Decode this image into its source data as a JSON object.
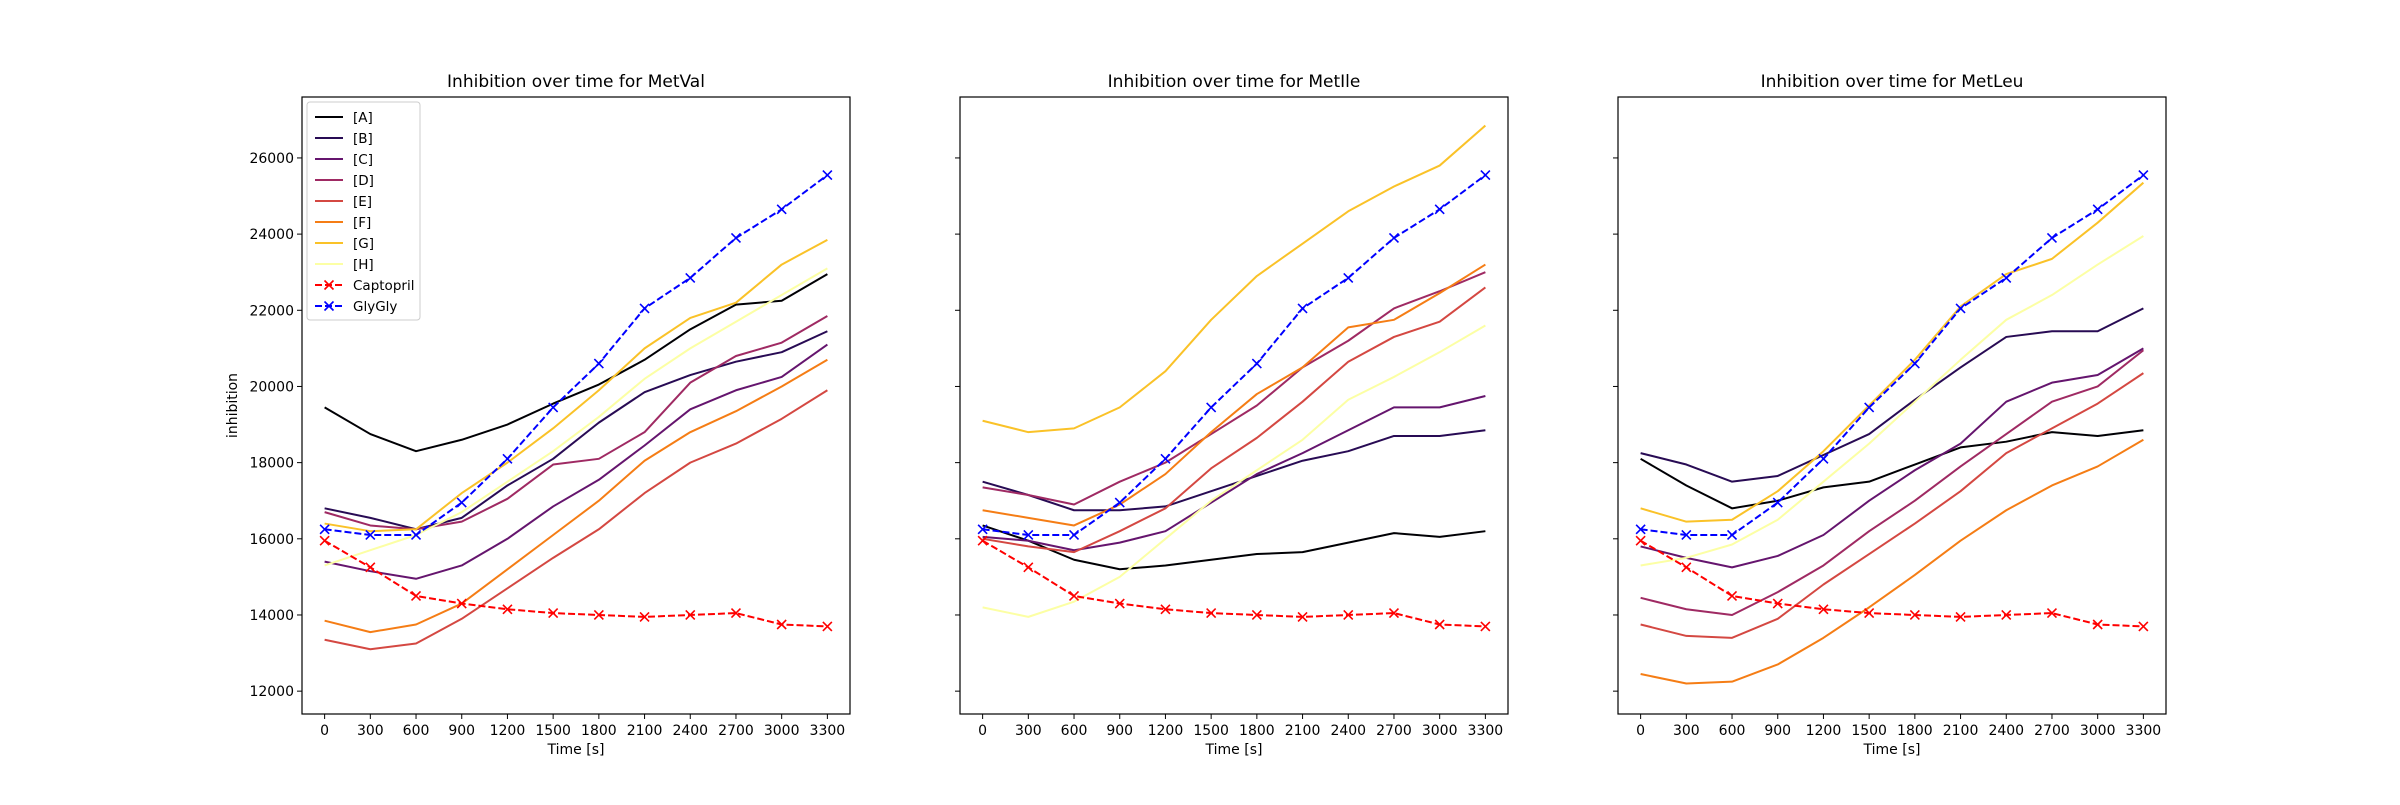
{
  "chart_data": [
    {
      "type": "line",
      "title": "Inhibition over time for MetVal",
      "xlabel": "Time [s]",
      "ylabel": "inhibition",
      "x": [
        0,
        300,
        600,
        900,
        1200,
        1500,
        1800,
        2100,
        2400,
        2700,
        3000,
        3300
      ],
      "xticks": [
        "0",
        "300",
        "600",
        "900",
        "1200",
        "1500",
        "1800",
        "2100",
        "2400",
        "2700",
        "3000",
        "3300"
      ],
      "yticks": [
        "12000",
        "14000",
        "16000",
        "18000",
        "20000",
        "22000",
        "24000",
        "26000"
      ],
      "ylim": [
        11400,
        27600
      ],
      "legend": "upper-left",
      "series": [
        {
          "name": "[A]",
          "color": "#000004",
          "style": "solid",
          "values": [
            19450,
            18750,
            18300,
            18600,
            19000,
            19550,
            20050,
            20700,
            21500,
            22150,
            22250,
            22950
          ]
        },
        {
          "name": "[B]",
          "color": "#280b54",
          "style": "solid",
          "values": [
            16800,
            16550,
            16250,
            16550,
            17400,
            18100,
            19050,
            19850,
            20300,
            20650,
            20900,
            21450
          ]
        },
        {
          "name": "[C]",
          "color": "#65156e",
          "style": "solid",
          "values": [
            15400,
            15150,
            14950,
            15300,
            16000,
            16850,
            17550,
            18450,
            19400,
            19900,
            20250,
            21100
          ]
        },
        {
          "name": "[D]",
          "color": "#9f2a63",
          "style": "solid",
          "values": [
            16700,
            16350,
            16250,
            16450,
            17050,
            17950,
            18100,
            18800,
            20100,
            20800,
            21150,
            21850
          ]
        },
        {
          "name": "[E]",
          "color": "#d44842",
          "style": "solid",
          "values": [
            13350,
            13100,
            13250,
            13900,
            14700,
            15500,
            16250,
            17200,
            18000,
            18500,
            19150,
            19900
          ]
        },
        {
          "name": "[F]",
          "color": "#f57d15",
          "style": "solid",
          "values": [
            13850,
            13550,
            13750,
            14300,
            15200,
            16100,
            17000,
            18050,
            18800,
            19350,
            20000,
            20700
          ]
        },
        {
          "name": "[G]",
          "color": "#fac228",
          "style": "solid",
          "values": [
            16400,
            16200,
            16250,
            17200,
            18000,
            18900,
            19900,
            21000,
            21800,
            22200,
            23200,
            23850
          ]
        },
        {
          "name": "[H]",
          "color": "#fcffa4",
          "style": "solid",
          "values": [
            15300,
            15700,
            16100,
            16700,
            17500,
            18300,
            19200,
            20200,
            21000,
            21700,
            22400,
            23100
          ]
        },
        {
          "name": "Captopril",
          "color": "#ff0000",
          "style": "dashed-x",
          "values": [
            15950,
            15250,
            14500,
            14300,
            14150,
            14050,
            14000,
            13950,
            14000,
            14050,
            13750,
            13700
          ]
        },
        {
          "name": "GlyGly",
          "color": "#0000ff",
          "style": "dashed-x",
          "values": [
            16250,
            16100,
            16100,
            16950,
            18100,
            19450,
            20600,
            22050,
            22850,
            23900,
            24650,
            25550
          ]
        }
      ]
    },
    {
      "type": "line",
      "title": "Inhibition over time for MetIle",
      "xlabel": "Time [s]",
      "x": [
        0,
        300,
        600,
        900,
        1200,
        1500,
        1800,
        2100,
        2400,
        2700,
        3000,
        3300
      ],
      "xticks": [
        "0",
        "300",
        "600",
        "900",
        "1200",
        "1500",
        "1800",
        "2100",
        "2400",
        "2700",
        "3000",
        "3300"
      ],
      "ylim": [
        11400,
        27600
      ],
      "series": [
        {
          "name": "[A]",
          "color": "#000004",
          "style": "solid",
          "values": [
            16350,
            15950,
            15450,
            15200,
            15300,
            15450,
            15600,
            15650,
            15900,
            16150,
            16050,
            16200
          ]
        },
        {
          "name": "[B]",
          "color": "#280b54",
          "style": "solid",
          "values": [
            17500,
            17150,
            16750,
            16750,
            16850,
            17250,
            17650,
            18050,
            18300,
            18700,
            18700,
            18850
          ]
        },
        {
          "name": "[C]",
          "color": "#65156e",
          "style": "solid",
          "values": [
            16050,
            15950,
            15700,
            15900,
            16200,
            16950,
            17700,
            18250,
            18850,
            19450,
            19450,
            19750
          ]
        },
        {
          "name": "[D]",
          "color": "#9f2a63",
          "style": "solid",
          "values": [
            17350,
            17150,
            16900,
            17500,
            18000,
            18750,
            19500,
            20500,
            21200,
            22050,
            22500,
            23000
          ]
        },
        {
          "name": "[E]",
          "color": "#d44842",
          "style": "solid",
          "values": [
            16000,
            15800,
            15650,
            16200,
            16800,
            17850,
            18650,
            19600,
            20650,
            21300,
            21700,
            22600
          ]
        },
        {
          "name": "[F]",
          "color": "#f57d15",
          "style": "solid",
          "values": [
            16750,
            16550,
            16350,
            16900,
            17700,
            18800,
            19800,
            20500,
            21550,
            21750,
            22450,
            23200
          ]
        },
        {
          "name": "[G]",
          "color": "#fac228",
          "style": "solid",
          "values": [
            19100,
            18800,
            18900,
            19450,
            20400,
            21750,
            22900,
            23750,
            24600,
            25250,
            25800,
            26850
          ]
        },
        {
          "name": "[H]",
          "color": "#fcffa4",
          "style": "solid",
          "values": [
            14200,
            13950,
            14350,
            15000,
            16000,
            17000,
            17800,
            18600,
            19650,
            20250,
            20900,
            21600
          ]
        },
        {
          "name": "Captopril",
          "color": "#ff0000",
          "style": "dashed-x",
          "values": [
            15950,
            15250,
            14500,
            14300,
            14150,
            14050,
            14000,
            13950,
            14000,
            14050,
            13750,
            13700
          ]
        },
        {
          "name": "GlyGly",
          "color": "#0000ff",
          "style": "dashed-x",
          "values": [
            16250,
            16100,
            16100,
            16950,
            18100,
            19450,
            20600,
            22050,
            22850,
            23900,
            24650,
            25550
          ]
        }
      ]
    },
    {
      "type": "line",
      "title": "Inhibition over time for MetLeu",
      "xlabel": "Time [s]",
      "x": [
        0,
        300,
        600,
        900,
        1200,
        1500,
        1800,
        2100,
        2400,
        2700,
        3000,
        3300
      ],
      "xticks": [
        "0",
        "300",
        "600",
        "900",
        "1200",
        "1500",
        "1800",
        "2100",
        "2400",
        "2700",
        "3000",
        "3300"
      ],
      "ylim": [
        11400,
        27600
      ],
      "series": [
        {
          "name": "[A]",
          "color": "#000004",
          "style": "solid",
          "values": [
            18100,
            17400,
            16800,
            17000,
            17350,
            17500,
            17950,
            18400,
            18550,
            18800,
            18700,
            18850
          ]
        },
        {
          "name": "[B]",
          "color": "#280b54",
          "style": "solid",
          "values": [
            18250,
            17950,
            17500,
            17650,
            18200,
            18750,
            19650,
            20500,
            21300,
            21450,
            21450,
            22050
          ]
        },
        {
          "name": "[C]",
          "color": "#65156e",
          "style": "solid",
          "values": [
            15800,
            15500,
            15250,
            15550,
            16100,
            17000,
            17800,
            18500,
            19600,
            20100,
            20300,
            21000
          ]
        },
        {
          "name": "[D]",
          "color": "#9f2a63",
          "style": "solid",
          "values": [
            14450,
            14150,
            14000,
            14600,
            15300,
            16200,
            17000,
            17900,
            18750,
            19600,
            20000,
            20950
          ]
        },
        {
          "name": "[E]",
          "color": "#d44842",
          "style": "solid",
          "values": [
            13750,
            13450,
            13400,
            13900,
            14800,
            15600,
            16400,
            17250,
            18250,
            18900,
            19550,
            20350
          ]
        },
        {
          "name": "[F]",
          "color": "#f57d15",
          "style": "solid",
          "values": [
            12450,
            12200,
            12250,
            12700,
            13400,
            14200,
            15050,
            15950,
            16750,
            17400,
            17900,
            18600
          ]
        },
        {
          "name": "[G]",
          "color": "#fac228",
          "style": "solid",
          "values": [
            16800,
            16450,
            16500,
            17250,
            18300,
            19500,
            20700,
            22100,
            22950,
            23350,
            24300,
            25350
          ]
        },
        {
          "name": "[H]",
          "color": "#fcffa4",
          "style": "solid",
          "values": [
            15300,
            15500,
            15850,
            16500,
            17500,
            18500,
            19600,
            20700,
            21750,
            22400,
            23200,
            23950
          ]
        },
        {
          "name": "Captopril",
          "color": "#ff0000",
          "style": "dashed-x",
          "values": [
            15950,
            15250,
            14500,
            14300,
            14150,
            14050,
            14000,
            13950,
            14000,
            14050,
            13750,
            13700
          ]
        },
        {
          "name": "GlyGly",
          "color": "#0000ff",
          "style": "dashed-x",
          "values": [
            16250,
            16100,
            16100,
            16950,
            18100,
            19450,
            20600,
            22050,
            22850,
            23900,
            24650,
            25550
          ]
        }
      ]
    }
  ]
}
